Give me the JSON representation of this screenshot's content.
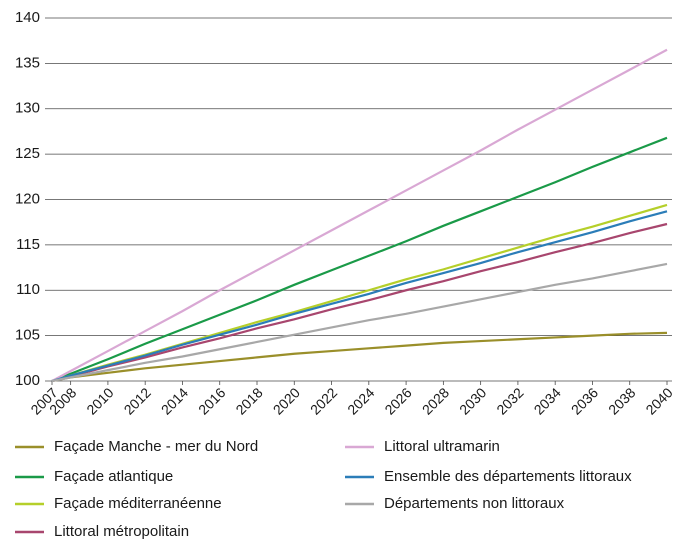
{
  "chart_data": {
    "type": "line",
    "x": [
      2007,
      2008,
      2010,
      2012,
      2014,
      2016,
      2018,
      2020,
      2022,
      2024,
      2026,
      2028,
      2030,
      2032,
      2034,
      2036,
      2038,
      2040
    ],
    "xlim": [
      2007,
      2040
    ],
    "xticks": [
      2007,
      2008,
      2010,
      2012,
      2014,
      2016,
      2018,
      2020,
      2022,
      2024,
      2026,
      2028,
      2030,
      2032,
      2034,
      2036,
      2038,
      2040
    ],
    "ylim": [
      100,
      140
    ],
    "yticks": [
      100,
      105,
      110,
      115,
      120,
      125,
      130,
      135,
      140
    ],
    "grid": true,
    "series": [
      {
        "name": "Façade Manche - mer du Nord",
        "color": "#9a8f2a",
        "values": [
          100,
          100.4,
          100.9,
          101.4,
          101.8,
          102.2,
          102.6,
          103.0,
          103.3,
          103.6,
          103.9,
          104.2,
          104.4,
          104.6,
          104.8,
          105.0,
          105.2,
          105.3
        ]
      },
      {
        "name": "Façade atlantique",
        "color": "#1a9a48",
        "values": [
          100,
          100.8,
          102.4,
          104.1,
          105.7,
          107.3,
          108.9,
          110.6,
          112.2,
          113.8,
          115.4,
          117.1,
          118.7,
          120.3,
          121.9,
          123.6,
          125.2,
          126.8
        ]
      },
      {
        "name": "Façade méditerranéenne",
        "color": "#b5cf2a",
        "values": [
          100,
          100.6,
          101.8,
          102.9,
          104.1,
          105.3,
          106.5,
          107.6,
          108.8,
          110.0,
          111.2,
          112.3,
          113.5,
          114.7,
          115.9,
          117.0,
          118.2,
          119.4
        ]
      },
      {
        "name": "Littoral métropolitain",
        "color": "#a8466e",
        "values": [
          100,
          100.5,
          101.6,
          102.6,
          103.7,
          104.7,
          105.8,
          106.8,
          107.9,
          108.9,
          110.0,
          111.0,
          112.1,
          113.1,
          114.2,
          115.2,
          116.3,
          117.3
        ]
      },
      {
        "name": "Littoral ultramarin",
        "color": "#d9a8d4",
        "values": [
          100,
          101.1,
          103.3,
          105.5,
          107.7,
          110.0,
          112.2,
          114.4,
          116.6,
          118.8,
          121.0,
          123.2,
          125.4,
          127.7,
          129.9,
          132.1,
          134.3,
          136.5
        ]
      },
      {
        "name": "Ensemble des départements littoraux",
        "color": "#2b7db8",
        "values": [
          100,
          100.6,
          101.7,
          102.8,
          104.0,
          105.1,
          106.2,
          107.4,
          108.5,
          109.6,
          110.8,
          111.9,
          113.0,
          114.2,
          115.3,
          116.4,
          117.6,
          118.7
        ]
      },
      {
        "name": "Départements non littoraux",
        "color": "#a8a8a8",
        "values": [
          100,
          100.4,
          101.2,
          102.0,
          102.7,
          103.5,
          104.3,
          105.1,
          105.9,
          106.7,
          107.4,
          108.2,
          109.0,
          109.8,
          110.6,
          111.3,
          112.1,
          112.9
        ]
      }
    ]
  }
}
